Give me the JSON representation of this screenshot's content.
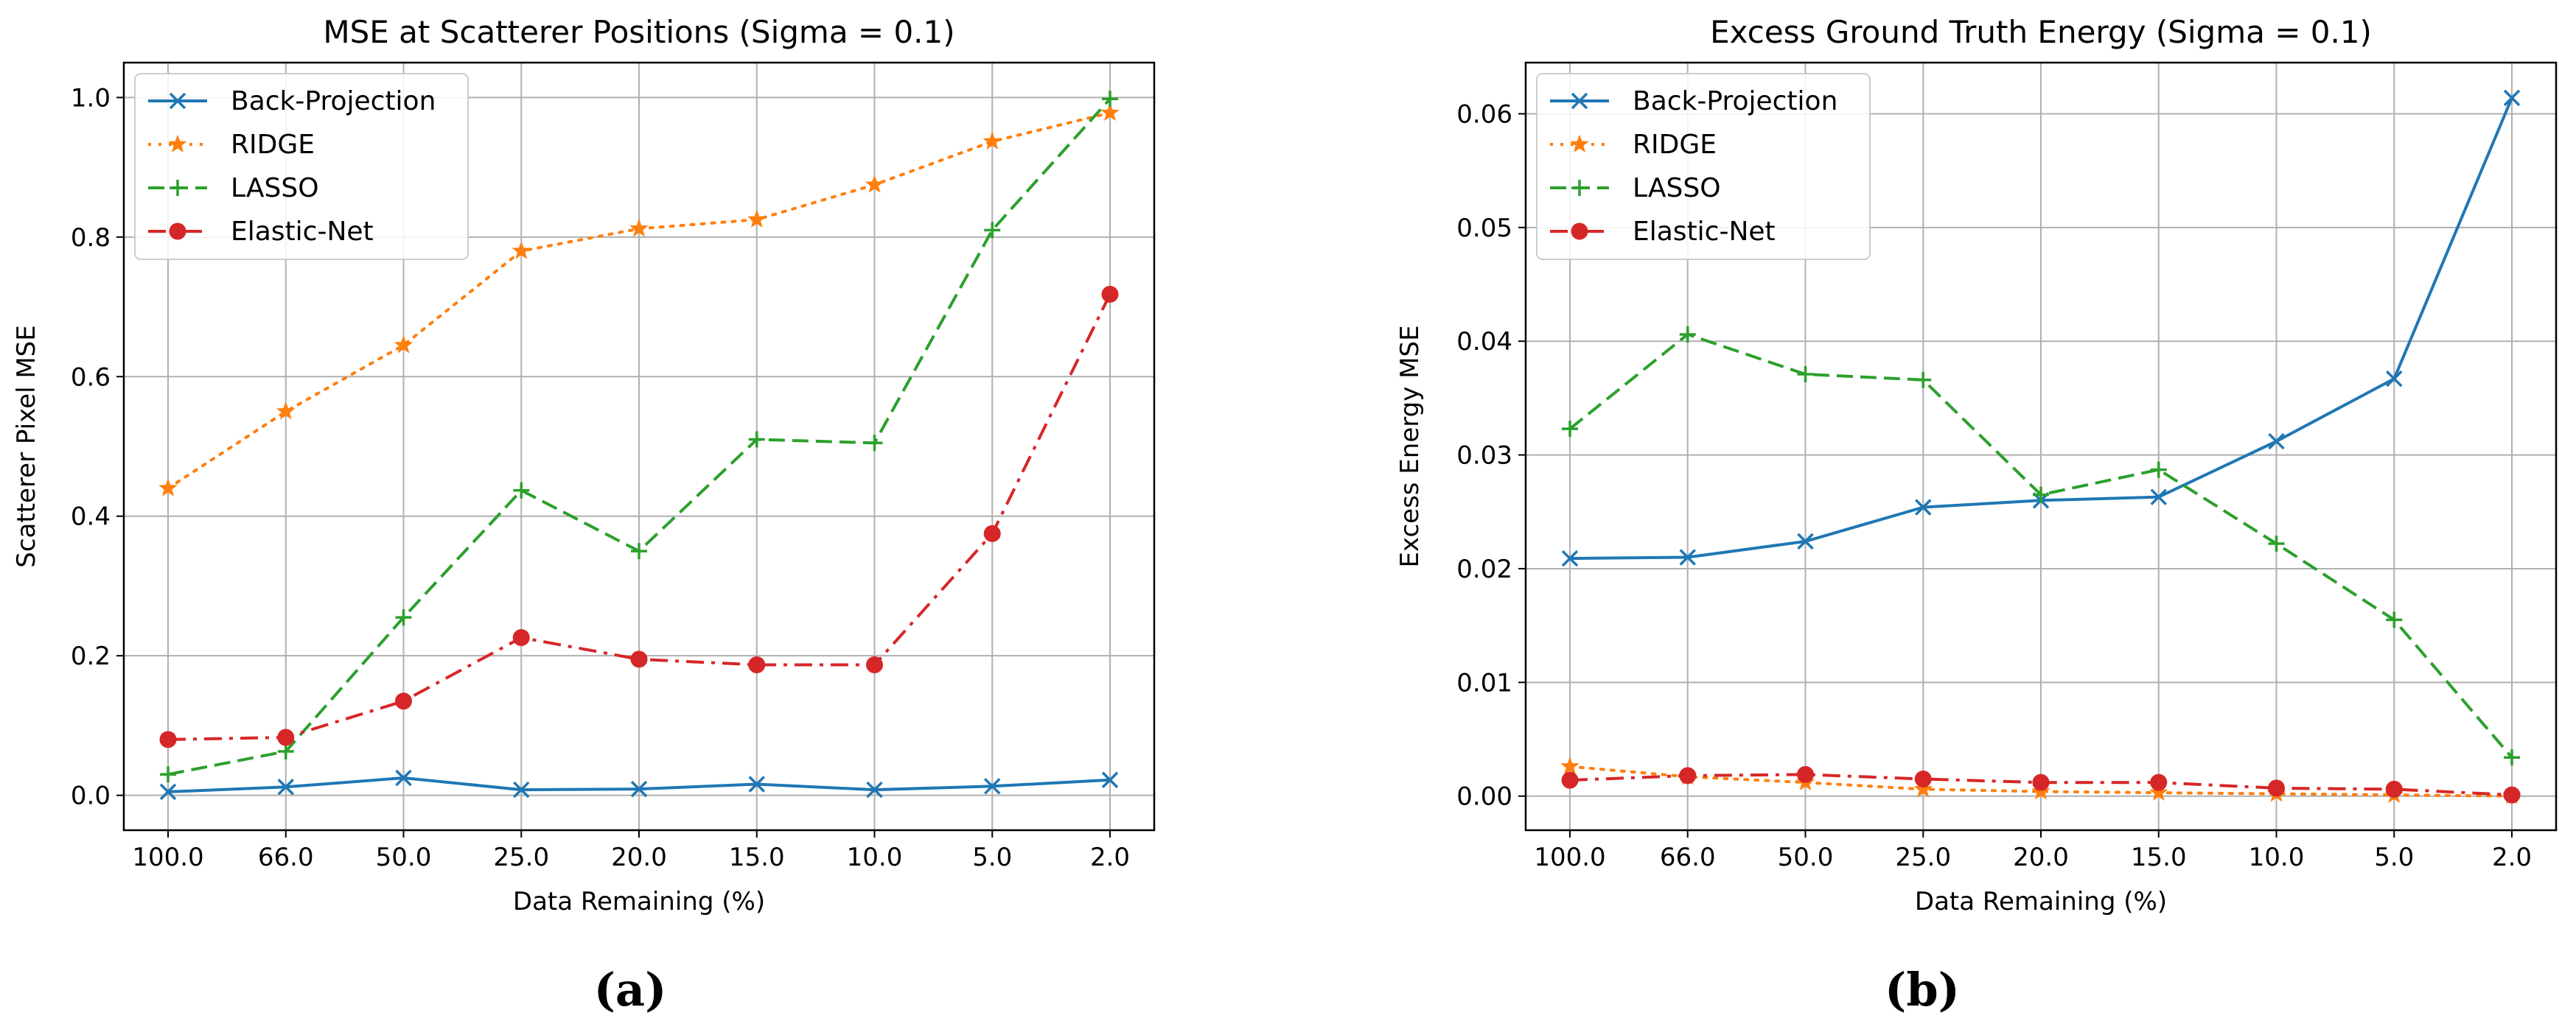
{
  "chart_data": [
    {
      "type": "line",
      "title": "MSE at Scatterer Positions (Sigma = 0.1)",
      "xlabel": "Data Remaining (%)",
      "ylabel": "Scatterer Pixel MSE",
      "categories": [
        "100.0",
        "66.0",
        "50.0",
        "25.0",
        "20.0",
        "15.0",
        "10.0",
        "5.0",
        "2.0"
      ],
      "ylim": [
        -0.05,
        1.05
      ],
      "yticks": [
        "0.0",
        "0.2",
        "0.4",
        "0.6",
        "0.8",
        "1.0"
      ],
      "ytick_values": [
        0.0,
        0.2,
        0.4,
        0.6,
        0.8,
        1.0
      ],
      "grid": true,
      "legend": "top-left",
      "caption": "(a)",
      "series": [
        {
          "name": "Back-Projection",
          "color": "#1f77b4",
          "marker": "x",
          "linestyle": "solid",
          "values": [
            0.005,
            0.012,
            0.025,
            0.008,
            0.009,
            0.016,
            0.008,
            0.013,
            0.022
          ]
        },
        {
          "name": "RIDGE",
          "color": "#ff7f0e",
          "marker": "star",
          "linestyle": "dotted",
          "values": [
            0.44,
            0.55,
            0.645,
            0.78,
            0.812,
            0.825,
            0.875,
            0.937,
            0.978
          ]
        },
        {
          "name": "LASSO",
          "color": "#2ca02c",
          "marker": "plus",
          "linestyle": "dashed",
          "values": [
            0.03,
            0.063,
            0.255,
            0.437,
            0.35,
            0.51,
            0.505,
            0.81,
            0.998
          ]
        },
        {
          "name": "Elastic-Net",
          "color": "#d62728",
          "marker": "circle",
          "linestyle": "dashdot",
          "values": [
            0.08,
            0.083,
            0.135,
            0.226,
            0.195,
            0.187,
            0.187,
            0.375,
            0.718
          ]
        }
      ]
    },
    {
      "type": "line",
      "title": "Excess Ground Truth Energy (Sigma = 0.1)",
      "xlabel": "Data Remaining (%)",
      "ylabel": "Excess Energy MSE",
      "categories": [
        "100.0",
        "66.0",
        "50.0",
        "25.0",
        "20.0",
        "15.0",
        "10.0",
        "5.0",
        "2.0"
      ],
      "ylim": [
        -0.003,
        0.0645
      ],
      "yticks": [
        "0.00",
        "0.01",
        "0.02",
        "0.03",
        "0.04",
        "0.05",
        "0.06"
      ],
      "ytick_values": [
        0.0,
        0.01,
        0.02,
        0.03,
        0.04,
        0.05,
        0.06
      ],
      "grid": true,
      "legend": "top-left",
      "caption": "(b)",
      "series": [
        {
          "name": "Back-Projection",
          "color": "#1f77b4",
          "marker": "x",
          "linestyle": "solid",
          "values": [
            0.0209,
            0.021,
            0.0224,
            0.0254,
            0.026,
            0.0263,
            0.0312,
            0.0367,
            0.0614
          ]
        },
        {
          "name": "RIDGE",
          "color": "#ff7f0e",
          "marker": "star",
          "linestyle": "dotted",
          "values": [
            0.0026,
            0.0017,
            0.0012,
            0.0006,
            0.0004,
            0.0003,
            0.0002,
            0.0001,
            0.0
          ]
        },
        {
          "name": "LASSO",
          "color": "#2ca02c",
          "marker": "plus",
          "linestyle": "dashed",
          "values": [
            0.0323,
            0.0406,
            0.0371,
            0.0366,
            0.0265,
            0.0287,
            0.0222,
            0.0155,
            0.0034
          ]
        },
        {
          "name": "Elastic-Net",
          "color": "#d62728",
          "marker": "circle",
          "linestyle": "dashdot",
          "values": [
            0.0014,
            0.0018,
            0.0019,
            0.0015,
            0.0012,
            0.0012,
            0.0007,
            0.0006,
            0.0001
          ]
        }
      ]
    }
  ]
}
